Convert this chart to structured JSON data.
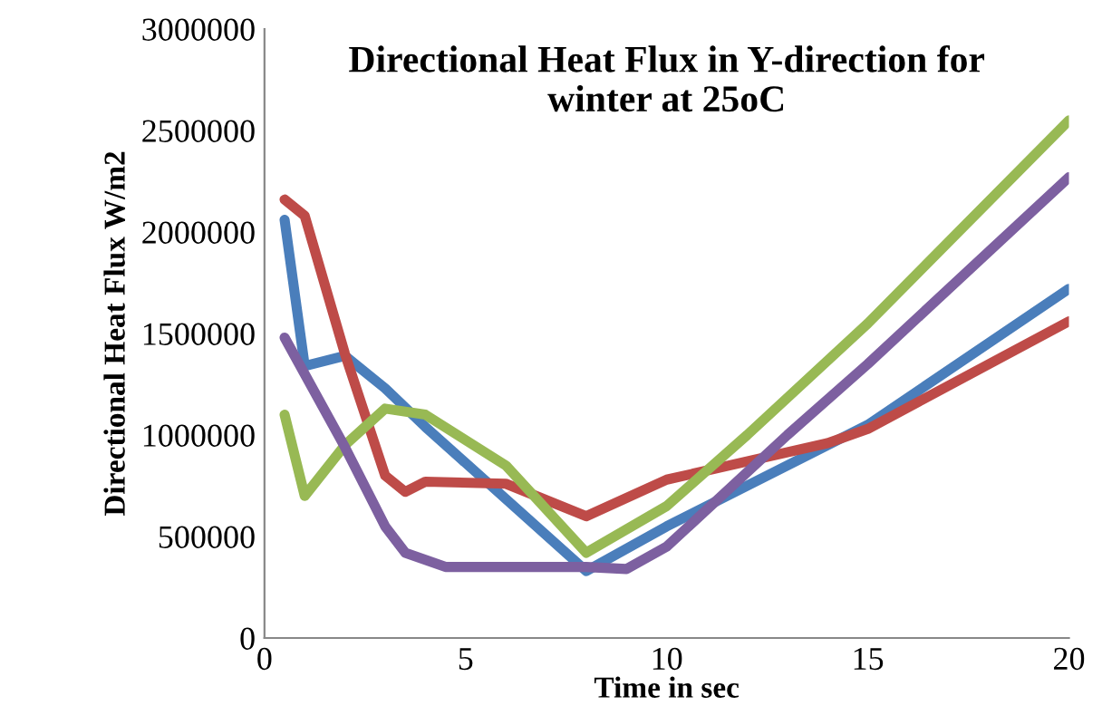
{
  "chart_data": {
    "type": "line",
    "title": "Directional Heat Flux in Y-direction for\nwinter at 25oC",
    "xlabel": "Time in sec",
    "ylabel": "Directional Heat Flux W/m2",
    "xlim": [
      0,
      20
    ],
    "xticks": [
      0,
      5,
      10,
      15,
      20
    ],
    "ylim": [
      0,
      3000000
    ],
    "yticks": [
      0,
      500000,
      1000000,
      1500000,
      2000000,
      2500000,
      3000000
    ],
    "grid": false,
    "legend": false,
    "marker": "none",
    "line_style": "solid",
    "series": [
      {
        "color": "#4a7ebb",
        "x": [
          0.5,
          1,
          2,
          3,
          4,
          8,
          10,
          15,
          20
        ],
        "values": [
          2060000,
          1340000,
          1390000,
          1230000,
          1040000,
          330000,
          550000,
          1050000,
          1720000
        ]
      },
      {
        "color": "#be4b48",
        "x": [
          0.5,
          1,
          2,
          3,
          3.5,
          4,
          6,
          8,
          10,
          14,
          15,
          20
        ],
        "values": [
          2160000,
          2080000,
          1400000,
          800000,
          720000,
          770000,
          760000,
          600000,
          780000,
          960000,
          1030000,
          1560000
        ]
      },
      {
        "color": "#98b954",
        "x": [
          0.5,
          1,
          2,
          3,
          4,
          6,
          8,
          10,
          12,
          15,
          20
        ],
        "values": [
          1100000,
          700000,
          950000,
          1130000,
          1100000,
          850000,
          420000,
          650000,
          1000000,
          1550000,
          2550000
        ]
      },
      {
        "color": "#7d60a0",
        "x": [
          0.5,
          1,
          2,
          3,
          3.5,
          4.5,
          8,
          9,
          10,
          13,
          15,
          20
        ],
        "values": [
          1480000,
          1300000,
          940000,
          550000,
          420000,
          350000,
          350000,
          340000,
          450000,
          1000000,
          1350000,
          2270000
        ]
      }
    ]
  }
}
